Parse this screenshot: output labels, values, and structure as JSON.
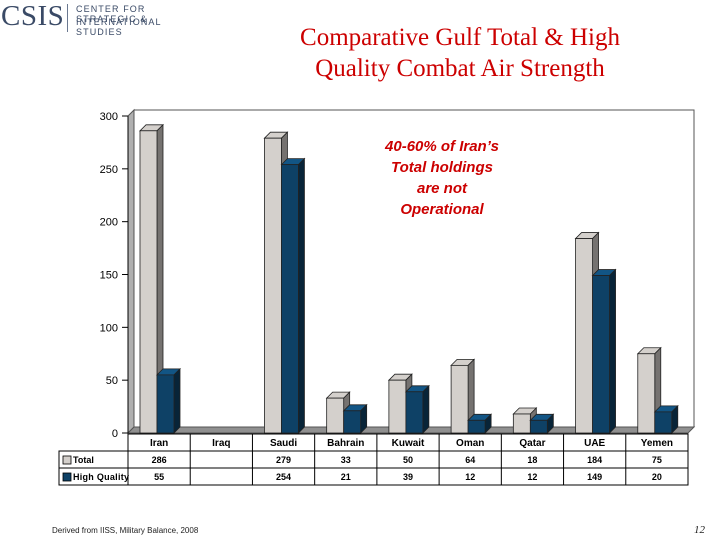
{
  "logo": {
    "wordmark": "CSIS",
    "line1": "CENTER FOR STRATEGIC &",
    "line2": "INTERNATIONAL STUDIES"
  },
  "title_line1": "Comparative Gulf Total & High",
  "title_line2": "Quality Combat Air Strength",
  "source": "Derived from IISS, Military Balance, 2008",
  "page_number": "12",
  "colors": {
    "total": "#d4d0cc",
    "high_quality": "#0e4166",
    "annotation": "#cc0000",
    "title": "#cc0000"
  },
  "chart_data": {
    "type": "bar",
    "title": "Comparative Gulf Total & High Quality Combat Air Strength",
    "categories": [
      "Iran",
      "Iraq",
      "Saudi",
      "Bahrain",
      "Kuwait",
      "Oman",
      "Qatar",
      "UAE",
      "Yemen"
    ],
    "series": [
      {
        "name": "Total",
        "values": [
          286,
          null,
          279,
          33,
          50,
          64,
          18,
          184,
          75
        ]
      },
      {
        "name": "High Quality",
        "values": [
          55,
          null,
          254,
          21,
          39,
          12,
          12,
          149,
          20
        ]
      }
    ],
    "ylim": [
      0,
      300
    ],
    "yticks": [
      0,
      50,
      100,
      150,
      200,
      250,
      300
    ],
    "annotation": [
      "40-60% of Iran’s",
      "Total holdings",
      "are not",
      "Operational"
    ],
    "data_table": true,
    "legend": "data-table"
  }
}
